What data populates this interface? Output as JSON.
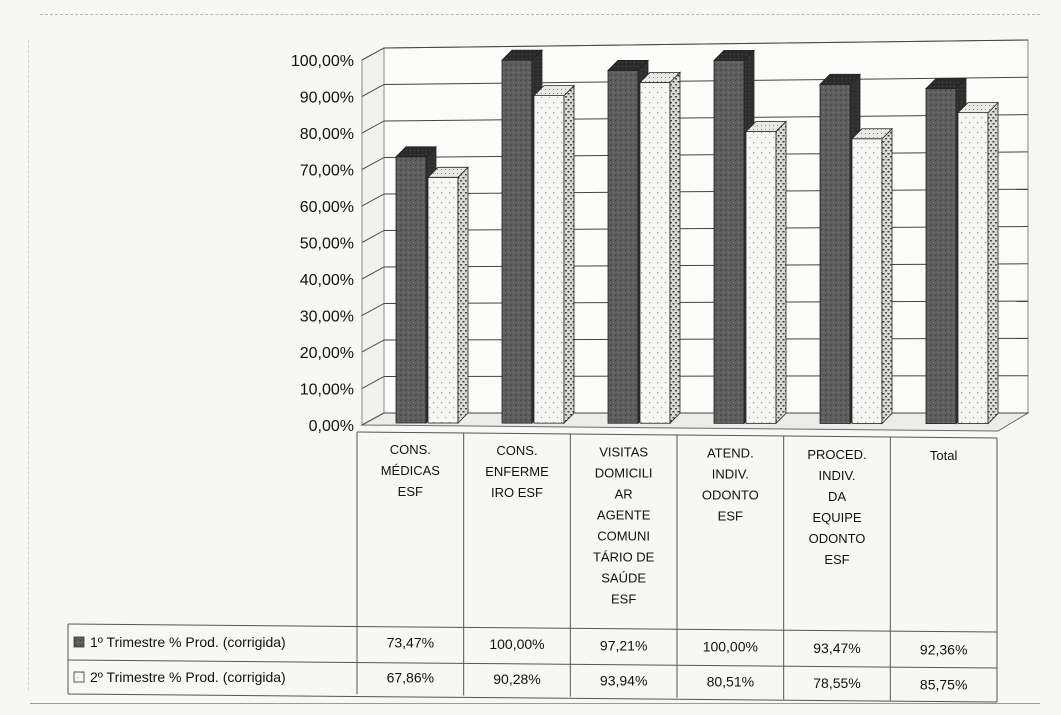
{
  "chart_data": {
    "type": "bar",
    "style": "3d-clustered-column",
    "categories": [
      [
        "CONS.",
        "MÉDICAS",
        "ESF"
      ],
      [
        "CONS.",
        "ENFERME",
        "IRO ESF"
      ],
      [
        "VISITAS",
        "DOMICILI",
        "AR",
        "AGENTE",
        "COMUNI",
        "TÁRIO DE",
        "SAÚDE",
        "ESF"
      ],
      [
        "ATEND.",
        "INDIV.",
        "ODONTO",
        "ESF"
      ],
      [
        "PROCED.",
        "INDIV.",
        "DA",
        "EQUIPE",
        "ODONTO",
        "ESF"
      ],
      [
        "Total"
      ]
    ],
    "series": [
      {
        "name": "1º Trimestre % Prod. (corrigida)",
        "values": [
          73.47,
          100.0,
          97.21,
          100.0,
          93.47,
          92.36
        ],
        "labels": [
          "73,47%",
          "100,00%",
          "97,21%",
          "100,00%",
          "93,47%",
          "92,36%"
        ],
        "color": "#5a5a5a",
        "pattern": "dark-stipple"
      },
      {
        "name": "2º Trimestre % Prod. (corrigida)",
        "values": [
          67.86,
          90.28,
          93.94,
          80.51,
          78.55,
          85.75
        ],
        "labels": [
          "67,86%",
          "90,28%",
          "93,94%",
          "80,51%",
          "78,55%",
          "85,75%"
        ],
        "color": "#f4f4f2",
        "pattern": "light-dotted"
      }
    ],
    "yticks": [
      "0,00%",
      "10,00%",
      "20,00%",
      "30,00%",
      "40,00%",
      "50,00%",
      "60,00%",
      "70,00%",
      "80,00%",
      "90,00%",
      "100,00%"
    ],
    "ylim": [
      0,
      100
    ],
    "grid": true,
    "legend": "data-table-left",
    "data_table": true,
    "title": "",
    "xlabel": "",
    "ylabel": ""
  }
}
